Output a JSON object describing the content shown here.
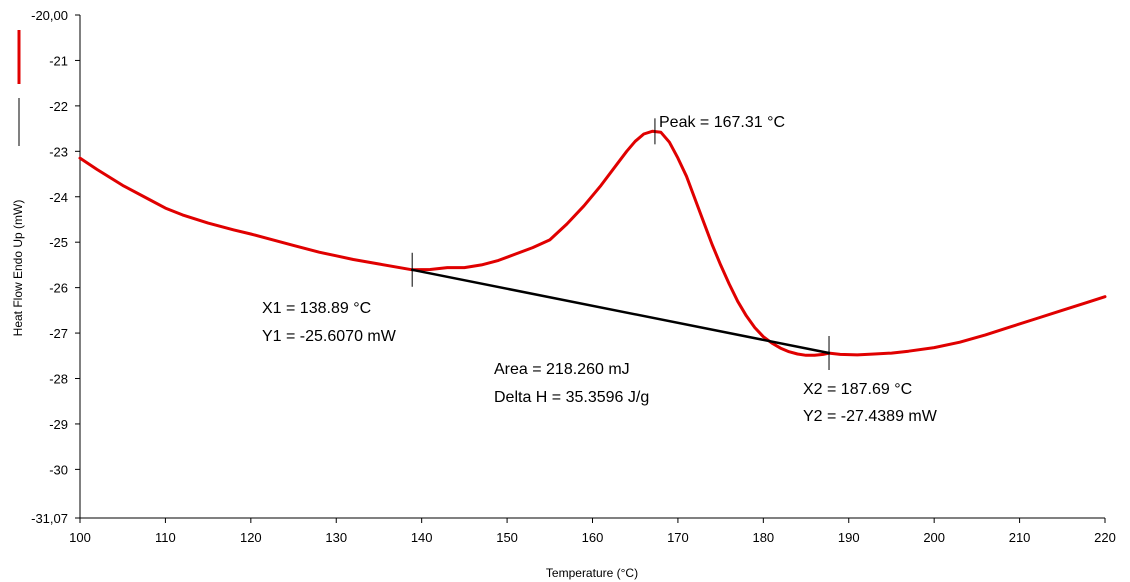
{
  "chart_data": {
    "type": "line",
    "title": "",
    "xlabel": "Temperature (°C)",
    "ylabel": "Heat Flow Endo Up (mW)",
    "xlim": [
      100,
      220
    ],
    "ylim": [
      -31.07,
      -20.0
    ],
    "x_ticks": [
      100,
      110,
      120,
      130,
      140,
      150,
      160,
      170,
      180,
      190,
      200,
      210,
      220
    ],
    "y_ticks": [
      {
        "value": -20.0,
        "label": "-20,00"
      },
      {
        "value": -21,
        "label": "-21"
      },
      {
        "value": -22,
        "label": "-22"
      },
      {
        "value": -23,
        "label": "-23"
      },
      {
        "value": -24,
        "label": "-24"
      },
      {
        "value": -25,
        "label": "-25"
      },
      {
        "value": -26,
        "label": "-26"
      },
      {
        "value": -27,
        "label": "-27"
      },
      {
        "value": -28,
        "label": "-28"
      },
      {
        "value": -29,
        "label": "-29"
      },
      {
        "value": -30,
        "label": "-30"
      },
      {
        "value": -31.07,
        "label": "-31,07"
      }
    ],
    "grid": false,
    "legend": {
      "placement": "left",
      "entries": [
        {
          "color": "#e00000"
        },
        {
          "color": "#000000"
        }
      ]
    },
    "series": [
      {
        "color": "#e00000",
        "x": [
          100,
          102,
          105,
          108,
          110,
          112,
          115,
          118,
          120,
          122,
          125,
          128,
          130,
          132,
          135,
          138.89,
          141,
          143,
          145,
          147,
          149,
          151,
          153,
          155,
          157,
          159,
          161,
          163,
          164,
          165,
          166,
          167,
          168,
          169,
          170,
          171,
          172,
          173,
          174,
          175,
          176,
          177,
          178,
          179,
          180,
          181,
          182,
          183,
          184,
          185,
          186,
          187,
          187.69,
          189,
          191,
          193,
          195,
          197,
          200,
          203,
          206,
          209,
          212,
          215,
          218,
          220
        ],
        "y": [
          -23.15,
          -23.4,
          -23.75,
          -24.05,
          -24.25,
          -24.4,
          -24.58,
          -24.73,
          -24.82,
          -24.92,
          -25.07,
          -25.22,
          -25.3,
          -25.38,
          -25.48,
          -25.607,
          -25.6,
          -25.56,
          -25.56,
          -25.5,
          -25.4,
          -25.26,
          -25.12,
          -24.95,
          -24.6,
          -24.2,
          -23.75,
          -23.25,
          -23.0,
          -22.78,
          -22.62,
          -22.56,
          -22.58,
          -22.8,
          -23.15,
          -23.55,
          -24.05,
          -24.55,
          -25.05,
          -25.5,
          -25.92,
          -26.3,
          -26.62,
          -26.88,
          -27.08,
          -27.22,
          -27.33,
          -27.41,
          -27.46,
          -27.49,
          -27.49,
          -27.47,
          -27.44,
          -27.47,
          -27.48,
          -27.46,
          -27.44,
          -27.4,
          -27.32,
          -27.2,
          -27.04,
          -26.86,
          -26.68,
          -26.5,
          -26.32,
          -26.2
        ]
      },
      {
        "color": "#000000",
        "x": [
          138.89,
          187.69
        ],
        "y": [
          -25.607,
          -27.4389
        ]
      }
    ],
    "markers": [
      {
        "x": 138.89,
        "y": -25.607
      },
      {
        "x": 187.69,
        "y": -27.4389
      },
      {
        "x": 167.31,
        "y": -22.56
      }
    ],
    "annotations": {
      "peak": "Peak = 167.31 °C",
      "x1": "X1 = 138.89 °C",
      "y1": "Y1 = -25.6070 mW",
      "area": "Area = 218.260 mJ",
      "delta_h": "Delta H = 35.3596 J/g",
      "x2": "X2 = 187.69 °C",
      "y2": "Y2 = -27.4389 mW"
    }
  }
}
